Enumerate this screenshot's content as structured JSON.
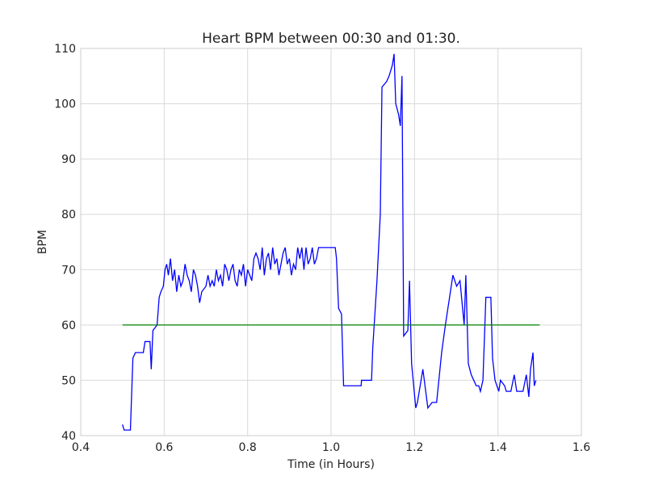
{
  "chart_data": {
    "type": "line",
    "title": "Heart BPM between 00:30 and 01:30.",
    "xlabel": "Time (in Hours)",
    "ylabel": "BPM",
    "xlim": [
      0.4,
      1.6
    ],
    "xticks": [
      0.4,
      0.6,
      0.8,
      {
        "value": 1,
        "label": "1.0"
      },
      1.2,
      1.4,
      1.6
    ],
    "ylim": [
      40,
      110
    ],
    "yticks": [
      40,
      50,
      60,
      70,
      80,
      90,
      100,
      110
    ],
    "grid": true,
    "series": [
      {
        "color": "#0000ff",
        "x": [
          0.5,
          0.504,
          0.519,
          0.525,
          0.531,
          0.55,
          0.554,
          0.566,
          0.569,
          0.573,
          0.583,
          0.588,
          0.592,
          0.598,
          0.602,
          0.606,
          0.61,
          0.615,
          0.62,
          0.625,
          0.63,
          0.635,
          0.64,
          0.645,
          0.65,
          0.655,
          0.66,
          0.665,
          0.67,
          0.675,
          0.68,
          0.685,
          0.69,
          0.7,
          0.705,
          0.71,
          0.715,
          0.72,
          0.725,
          0.73,
          0.735,
          0.74,
          0.745,
          0.75,
          0.755,
          0.76,
          0.765,
          0.77,
          0.775,
          0.78,
          0.785,
          0.79,
          0.795,
          0.8,
          0.81,
          0.815,
          0.82,
          0.825,
          0.83,
          0.835,
          0.84,
          0.845,
          0.85,
          0.855,
          0.86,
          0.865,
          0.87,
          0.875,
          0.88,
          0.885,
          0.89,
          0.895,
          0.9,
          0.905,
          0.91,
          0.915,
          0.92,
          0.925,
          0.93,
          0.935,
          0.94,
          0.945,
          0.95,
          0.955,
          0.96,
          0.965,
          0.97,
          1.01,
          1.013,
          1.018,
          1.025,
          1.03,
          1.072,
          1.073,
          1.097,
          1.1,
          1.11,
          1.118,
          1.122,
          1.133,
          1.139,
          1.147,
          1.151,
          1.155,
          1.162,
          1.166,
          1.17,
          1.174,
          1.184,
          1.188,
          1.193,
          1.203,
          1.207,
          1.22,
          1.232,
          1.242,
          1.253,
          1.265,
          1.274,
          1.284,
          1.292,
          1.301,
          1.309,
          1.319,
          1.323,
          1.329,
          1.336,
          1.342,
          1.348,
          1.354,
          1.358,
          1.364,
          1.371,
          1.383,
          1.387,
          1.393,
          1.402,
          1.406,
          1.416,
          1.42,
          1.431,
          1.439,
          1.445,
          1.46,
          1.468,
          1.474,
          1.478,
          1.484,
          1.487,
          1.491
        ],
        "values": [
          42,
          41,
          41,
          54,
          55,
          55,
          57,
          57,
          52,
          59,
          60,
          65,
          66,
          67,
          70,
          71,
          69,
          72,
          68,
          70,
          66,
          69,
          67,
          68,
          71,
          69,
          68,
          66,
          70,
          69,
          67,
          64,
          66,
          67,
          69,
          67,
          68,
          67,
          70,
          68,
          69,
          67,
          71,
          70,
          68,
          70,
          71,
          68,
          67,
          70,
          69,
          71,
          67,
          70,
          68,
          72,
          73,
          72,
          70,
          74,
          69,
          72,
          73,
          70,
          74,
          71,
          72,
          69,
          71,
          73,
          74,
          71,
          72,
          69,
          71,
          70,
          74,
          72,
          74,
          70,
          74,
          71,
          72,
          74,
          71,
          72,
          74,
          74,
          72,
          63,
          62,
          49,
          49,
          50,
          50,
          56,
          68,
          80,
          103,
          104,
          105,
          107,
          109,
          100,
          98,
          96,
          105,
          58,
          59,
          68,
          53,
          45,
          46,
          52,
          45,
          46,
          46,
          55,
          60,
          65,
          69,
          67,
          68,
          60,
          69,
          53,
          51,
          50,
          49,
          49,
          48,
          50,
          65,
          65,
          54,
          50,
          48,
          50,
          49,
          48,
          48,
          51,
          48,
          48,
          51,
          47,
          52,
          55,
          49,
          50
        ]
      },
      {
        "color": "#008000",
        "x": [
          0.5,
          1.5
        ],
        "values": [
          60,
          60
        ]
      }
    ]
  }
}
